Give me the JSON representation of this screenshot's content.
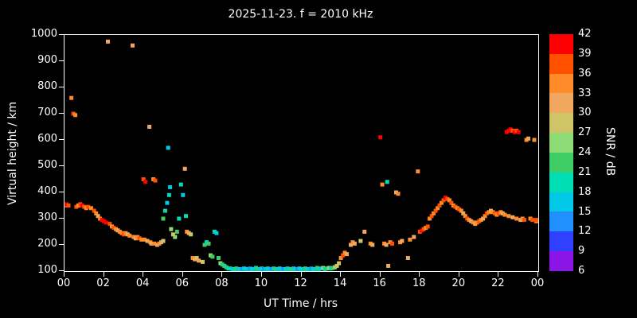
{
  "colors": {
    "background": "#000000",
    "axis": "#ffffff",
    "text": "#ffffff"
  },
  "chart_data": {
    "type": "scatter",
    "title": "2025-11-23. f = 2010 kHz",
    "xlabel": "UT Time / hrs",
    "ylabel": "Virtual height / km",
    "xlim": [
      0,
      24
    ],
    "ylim": [
      100,
      1000
    ],
    "x_tick_hours": [
      0,
      2,
      4,
      6,
      8,
      10,
      12,
      14,
      16,
      18,
      20,
      22,
      24
    ],
    "x_tick_labels": [
      "00",
      "02",
      "04",
      "06",
      "08",
      "10",
      "12",
      "14",
      "16",
      "18",
      "20",
      "22",
      "00"
    ],
    "y_ticks": [
      100,
      200,
      300,
      400,
      500,
      600,
      700,
      800,
      900,
      1000
    ],
    "grid": false,
    "marker": "square",
    "colorbar": {
      "label": "SNR / dB",
      "min": 6,
      "max": 42,
      "step": 3,
      "ticks": [
        6,
        9,
        12,
        15,
        18,
        21,
        24,
        27,
        30,
        33,
        36,
        39,
        42
      ],
      "segment_colors_bottom_to_top": [
        "#8C14E6",
        "#3040FF",
        "#2090FF",
        "#00C8E6",
        "#00DCB4",
        "#3ECC66",
        "#8EDC78",
        "#CFC468",
        "#F0A860",
        "#FF8C28",
        "#FF5000",
        "#FF0000"
      ]
    },
    "points": [
      [
        0.0,
        350,
        36
      ],
      [
        0.1,
        355,
        39
      ],
      [
        0.2,
        350,
        36
      ],
      [
        0.35,
        760,
        33
      ],
      [
        0.45,
        700,
        36
      ],
      [
        0.55,
        695,
        33
      ],
      [
        0.6,
        345,
        36
      ],
      [
        0.7,
        350,
        33
      ],
      [
        0.8,
        355,
        36
      ],
      [
        0.9,
        350,
        39
      ],
      [
        1.0,
        345,
        36
      ],
      [
        1.1,
        340,
        33
      ],
      [
        1.2,
        345,
        36
      ],
      [
        1.35,
        340,
        33
      ],
      [
        1.5,
        330,
        36
      ],
      [
        1.6,
        320,
        33
      ],
      [
        1.7,
        310,
        30
      ],
      [
        1.8,
        300,
        33
      ],
      [
        1.9,
        295,
        42
      ],
      [
        2.0,
        290,
        42
      ],
      [
        2.1,
        285,
        39
      ],
      [
        2.2,
        975,
        30
      ],
      [
        2.3,
        280,
        36
      ],
      [
        2.4,
        270,
        33
      ],
      [
        2.5,
        265,
        36
      ],
      [
        2.6,
        260,
        33
      ],
      [
        2.7,
        255,
        30
      ],
      [
        2.8,
        250,
        33
      ],
      [
        2.9,
        245,
        33
      ],
      [
        3.0,
        240,
        36
      ],
      [
        3.1,
        245,
        33
      ],
      [
        3.2,
        240,
        30
      ],
      [
        3.3,
        235,
        33
      ],
      [
        3.45,
        960,
        30
      ],
      [
        3.5,
        230,
        33
      ],
      [
        3.6,
        225,
        30
      ],
      [
        3.7,
        230,
        33
      ],
      [
        3.8,
        225,
        36
      ],
      [
        3.9,
        220,
        33
      ],
      [
        4.0,
        450,
        36
      ],
      [
        4.05,
        220,
        33
      ],
      [
        4.1,
        440,
        39
      ],
      [
        4.2,
        215,
        30
      ],
      [
        4.3,
        650,
        30
      ],
      [
        4.35,
        210,
        33
      ],
      [
        4.4,
        205,
        30
      ],
      [
        4.5,
        450,
        33
      ],
      [
        4.55,
        205,
        33
      ],
      [
        4.6,
        445,
        36
      ],
      [
        4.7,
        200,
        30
      ],
      [
        4.8,
        205,
        33
      ],
      [
        4.9,
        210,
        30
      ],
      [
        5.0,
        215,
        27
      ],
      [
        5.0,
        300,
        21
      ],
      [
        5.1,
        330,
        18
      ],
      [
        5.2,
        360,
        15
      ],
      [
        5.25,
        570,
        15
      ],
      [
        5.3,
        390,
        18
      ],
      [
        5.35,
        420,
        15
      ],
      [
        5.4,
        260,
        24
      ],
      [
        5.5,
        240,
        27
      ],
      [
        5.6,
        230,
        24
      ],
      [
        5.7,
        250,
        21
      ],
      [
        5.8,
        300,
        18
      ],
      [
        5.9,
        430,
        18
      ],
      [
        6.0,
        390,
        15
      ],
      [
        6.1,
        490,
        30
      ],
      [
        6.15,
        310,
        18
      ],
      [
        6.2,
        250,
        33
      ],
      [
        6.3,
        245,
        30
      ],
      [
        6.4,
        240,
        27
      ],
      [
        6.5,
        150,
        33
      ],
      [
        6.6,
        145,
        30
      ],
      [
        6.7,
        150,
        27
      ],
      [
        6.8,
        140,
        30
      ],
      [
        7.0,
        135,
        27
      ],
      [
        7.1,
        200,
        21
      ],
      [
        7.2,
        210,
        18
      ],
      [
        7.3,
        205,
        21
      ],
      [
        7.4,
        160,
        24
      ],
      [
        7.5,
        155,
        21
      ],
      [
        7.6,
        250,
        18
      ],
      [
        7.7,
        245,
        15
      ],
      [
        7.8,
        150,
        21
      ],
      [
        7.9,
        130,
        24
      ],
      [
        8.0,
        125,
        21
      ],
      [
        8.1,
        120,
        18
      ],
      [
        8.2,
        115,
        21
      ],
      [
        8.3,
        110,
        18
      ],
      [
        8.4,
        110,
        18
      ],
      [
        8.5,
        108,
        15
      ],
      [
        8.6,
        105,
        18
      ],
      [
        8.7,
        110,
        21
      ],
      [
        8.8,
        105,
        15
      ],
      [
        8.9,
        108,
        18
      ],
      [
        9.0,
        105,
        12
      ],
      [
        9.1,
        110,
        15
      ],
      [
        9.2,
        108,
        18
      ],
      [
        9.3,
        105,
        15
      ],
      [
        9.4,
        110,
        12
      ],
      [
        9.5,
        105,
        18
      ],
      [
        9.6,
        108,
        15
      ],
      [
        9.7,
        112,
        18
      ],
      [
        9.8,
        108,
        21
      ],
      [
        9.9,
        105,
        15
      ],
      [
        10.0,
        110,
        18
      ],
      [
        10.1,
        105,
        12
      ],
      [
        10.2,
        108,
        15
      ],
      [
        10.3,
        110,
        18
      ],
      [
        10.4,
        105,
        15
      ],
      [
        10.5,
        108,
        12
      ],
      [
        10.6,
        110,
        18
      ],
      [
        10.7,
        105,
        21
      ],
      [
        10.8,
        108,
        15
      ],
      [
        10.9,
        110,
        18
      ],
      [
        11.0,
        105,
        15
      ],
      [
        11.1,
        108,
        12
      ],
      [
        11.2,
        105,
        18
      ],
      [
        11.3,
        110,
        15
      ],
      [
        11.4,
        108,
        18
      ],
      [
        11.5,
        105,
        21
      ],
      [
        11.6,
        110,
        15
      ],
      [
        11.7,
        105,
        18
      ],
      [
        11.8,
        108,
        12
      ],
      [
        11.9,
        110,
        15
      ],
      [
        12.0,
        105,
        18
      ],
      [
        12.1,
        108,
        15
      ],
      [
        12.2,
        110,
        21
      ],
      [
        12.3,
        105,
        18
      ],
      [
        12.4,
        108,
        15
      ],
      [
        12.5,
        110,
        12
      ],
      [
        12.6,
        105,
        18
      ],
      [
        12.7,
        108,
        15
      ],
      [
        12.8,
        112,
        21
      ],
      [
        12.9,
        108,
        18
      ],
      [
        13.0,
        110,
        15
      ],
      [
        13.1,
        112,
        24
      ],
      [
        13.2,
        108,
        18
      ],
      [
        13.3,
        110,
        21
      ],
      [
        13.4,
        112,
        24
      ],
      [
        13.5,
        110,
        18
      ],
      [
        13.6,
        112,
        21
      ],
      [
        13.7,
        115,
        24
      ],
      [
        13.8,
        120,
        27
      ],
      [
        13.9,
        130,
        27
      ],
      [
        14.0,
        150,
        33
      ],
      [
        14.1,
        160,
        36
      ],
      [
        14.2,
        170,
        33
      ],
      [
        14.3,
        165,
        30
      ],
      [
        14.5,
        200,
        30
      ],
      [
        14.6,
        210,
        33
      ],
      [
        14.7,
        205,
        30
      ],
      [
        15.0,
        215,
        27
      ],
      [
        15.2,
        250,
        30
      ],
      [
        15.5,
        205,
        33
      ],
      [
        15.6,
        200,
        30
      ],
      [
        16.0,
        610,
        42
      ],
      [
        16.1,
        430,
        33
      ],
      [
        16.2,
        205,
        33
      ],
      [
        16.3,
        200,
        30
      ],
      [
        16.35,
        440,
        18
      ],
      [
        16.4,
        120,
        30
      ],
      [
        16.5,
        210,
        33
      ],
      [
        16.6,
        205,
        36
      ],
      [
        16.8,
        400,
        30
      ],
      [
        16.9,
        395,
        33
      ],
      [
        17.0,
        210,
        33
      ],
      [
        17.1,
        215,
        30
      ],
      [
        17.4,
        150,
        30
      ],
      [
        17.5,
        220,
        33
      ],
      [
        17.7,
        230,
        30
      ],
      [
        17.9,
        480,
        33
      ],
      [
        18.0,
        250,
        36
      ],
      [
        18.1,
        255,
        39
      ],
      [
        18.2,
        260,
        36
      ],
      [
        18.3,
        265,
        33
      ],
      [
        18.4,
        270,
        36
      ],
      [
        18.5,
        300,
        33
      ],
      [
        18.6,
        310,
        36
      ],
      [
        18.7,
        320,
        33
      ],
      [
        18.8,
        330,
        36
      ],
      [
        18.9,
        340,
        33
      ],
      [
        19.0,
        350,
        36
      ],
      [
        19.1,
        360,
        33
      ],
      [
        19.2,
        370,
        36
      ],
      [
        19.3,
        380,
        39
      ],
      [
        19.4,
        375,
        36
      ],
      [
        19.5,
        370,
        33
      ],
      [
        19.6,
        360,
        36
      ],
      [
        19.7,
        350,
        33
      ],
      [
        19.8,
        345,
        36
      ],
      [
        19.9,
        340,
        33
      ],
      [
        20.0,
        335,
        36
      ],
      [
        20.1,
        330,
        33
      ],
      [
        20.2,
        320,
        30
      ],
      [
        20.3,
        310,
        33
      ],
      [
        20.4,
        300,
        36
      ],
      [
        20.5,
        295,
        33
      ],
      [
        20.6,
        290,
        30
      ],
      [
        20.7,
        285,
        33
      ],
      [
        20.8,
        280,
        30
      ],
      [
        20.9,
        285,
        33
      ],
      [
        21.0,
        290,
        36
      ],
      [
        21.1,
        295,
        33
      ],
      [
        21.2,
        300,
        30
      ],
      [
        21.3,
        310,
        33
      ],
      [
        21.4,
        320,
        36
      ],
      [
        21.5,
        325,
        33
      ],
      [
        21.6,
        330,
        30
      ],
      [
        21.7,
        325,
        33
      ],
      [
        21.8,
        320,
        36
      ],
      [
        21.9,
        315,
        33
      ],
      [
        22.0,
        320,
        36
      ],
      [
        22.1,
        325,
        33
      ],
      [
        22.2,
        320,
        30
      ],
      [
        22.3,
        315,
        33
      ],
      [
        22.4,
        630,
        39
      ],
      [
        22.5,
        635,
        42
      ],
      [
        22.5,
        310,
        33
      ],
      [
        22.6,
        640,
        39
      ],
      [
        22.7,
        635,
        36
      ],
      [
        22.7,
        305,
        30
      ],
      [
        22.8,
        630,
        39
      ],
      [
        22.9,
        635,
        36
      ],
      [
        22.9,
        300,
        33
      ],
      [
        23.0,
        630,
        39
      ],
      [
        23.1,
        295,
        30
      ],
      [
        23.2,
        300,
        33
      ],
      [
        23.3,
        295,
        36
      ],
      [
        23.4,
        600,
        33
      ],
      [
        23.5,
        605,
        30
      ],
      [
        23.6,
        300,
        33
      ],
      [
        23.7,
        295,
        36
      ],
      [
        23.8,
        600,
        33
      ],
      [
        23.9,
        290,
        33
      ],
      [
        24.0,
        295,
        36
      ]
    ]
  }
}
